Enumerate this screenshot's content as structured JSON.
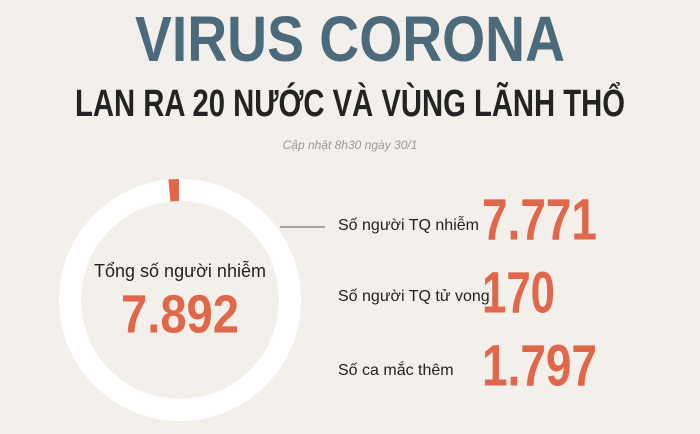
{
  "header": {
    "title": "VIRUS CORONA",
    "subtitle": "LAN RA 20 NƯỚC VÀ VÙNG LÃNH THỔ",
    "updated": "Cập nhật 8h30 ngày 30/1"
  },
  "total": {
    "label": "Tổng số người nhiễm",
    "value": "7.892"
  },
  "stats": [
    {
      "label": "Số người TQ nhiễm",
      "value": "7.771"
    },
    {
      "label": "Số người TQ tử vong",
      "value": "170"
    },
    {
      "label": "Số ca mắc thêm",
      "value": "1.797"
    }
  ]
}
